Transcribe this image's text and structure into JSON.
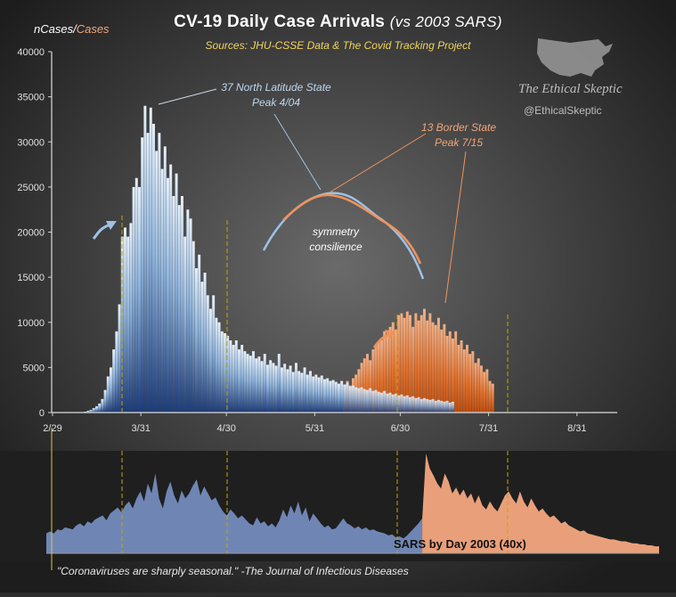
{
  "header": {
    "title": "CV-19  Daily Case Arrivals",
    "title_paren": "(vs 2003 SARS)",
    "sources": "Sources: JHU-CSSE Data & The Covid Tracking Project",
    "units_left": "nCases",
    "units_sep": "/",
    "units_right": "Cases"
  },
  "annotations": {
    "north": "37 North Latitude State Peak 4/04",
    "border": "13 Border State Peak 7/15",
    "symmetry": "symmetry consilience"
  },
  "branding": {
    "name": "The Ethical Skeptic",
    "handle": "@EthicalSkeptic",
    "icon": "usa-map-icon"
  },
  "inset": {
    "label": "SARS by Day 2003 (40x)"
  },
  "footer": {
    "quote": "\"Coronaviruses are sharply seasonal.\" -The Journal of Infectious Diseases"
  },
  "colors": {
    "background": "#2e2e2e",
    "north_series": "#9ec2e6",
    "north_series_dark": "#1f3f7a",
    "border_series": "#f0935a",
    "border_series_dark": "#c9520f",
    "sars_blue": "#6f86b5",
    "sars_orange": "#e9a07a",
    "title": "#ffffff",
    "sources": "#f2d35c"
  },
  "chart_data": [
    {
      "type": "bar",
      "title": "CV-19  Daily Case Arrivals (vs 2003 SARS)",
      "x_tick_labels": [
        "2/29",
        "3/31",
        "4/30",
        "5/31",
        "6/30",
        "7/31",
        "8/31"
      ],
      "y_tick_labels": [
        "0",
        "5000",
        "10000",
        "15000",
        "20000",
        "25000",
        "30000",
        "35000",
        "40000"
      ],
      "ylim": [
        0,
        40000
      ],
      "grid": false,
      "series": [
        {
          "name": "37 North Latitude",
          "peak_label": "4/04",
          "values": [
            0,
            0,
            0,
            0,
            0,
            0,
            0,
            0,
            0,
            0,
            50,
            100,
            200,
            300,
            500,
            700,
            1000,
            1500,
            2500,
            4000,
            5000,
            7000,
            9000,
            12000,
            19500,
            20500,
            19500,
            21000,
            25000,
            26000,
            25000,
            30500,
            34000,
            31000,
            33800,
            32000,
            29000,
            31000,
            27000,
            29500,
            26000,
            27500,
            24000,
            26500,
            23000,
            24000,
            19500,
            22500,
            21500,
            19000,
            16000,
            17500,
            14500,
            15500,
            13000,
            11500,
            13000,
            10500,
            10000,
            9000,
            8800,
            8500,
            8000,
            7500,
            8000,
            7000,
            7500,
            6800,
            6500,
            6300,
            6800,
            6000,
            6200,
            5700,
            6500,
            5300,
            5800,
            5500,
            5200,
            6500,
            5000,
            5400,
            4800,
            5200,
            4500,
            5500,
            4600,
            4400,
            5000,
            4200,
            4600,
            4000,
            4200,
            3900,
            4100,
            3700,
            3800,
            3500,
            3600,
            3400,
            3200,
            3500,
            3100,
            3300,
            2900,
            3000,
            2800,
            2700,
            2800,
            2600,
            2500,
            2700,
            2400,
            2500,
            2300,
            2200,
            2400,
            2100,
            2200,
            2000,
            2100,
            1900,
            2000,
            1800,
            1900,
            1700,
            1800,
            1600,
            1700,
            1500,
            1600,
            1500,
            1400,
            1500,
            1300,
            1400,
            1300,
            1200,
            1300,
            1100,
            1200
          ]
        },
        {
          "name": "13 Border State",
          "peak_label": "7/15",
          "values": [
            0,
            0,
            0,
            0,
            0,
            0,
            0,
            0,
            0,
            0,
            0,
            0,
            0,
            0,
            0,
            0,
            0,
            0,
            0,
            0,
            0,
            0,
            0,
            0,
            0,
            0,
            0,
            0,
            0,
            0,
            0,
            0,
            0,
            0,
            0,
            0,
            0,
            0,
            0,
            0,
            0,
            0,
            0,
            0,
            0,
            0,
            0,
            0,
            0,
            0,
            0,
            0,
            0,
            0,
            0,
            0,
            0,
            0,
            0,
            0,
            0,
            0,
            0,
            0,
            0,
            0,
            0,
            0,
            0,
            0,
            0,
            0,
            0,
            0,
            0,
            0,
            0,
            0,
            0,
            0,
            0,
            0,
            0,
            0,
            0,
            0,
            0,
            0,
            0,
            0,
            0,
            0,
            0,
            0,
            0,
            0,
            0,
            0,
            0,
            0,
            0,
            0,
            3000,
            3500,
            3000,
            3800,
            4200,
            4800,
            5500,
            6000,
            6500,
            5800,
            7000,
            7500,
            7800,
            8000,
            9000,
            8500,
            9500,
            10000,
            9200,
            10800,
            11000,
            10500,
            11200,
            10800,
            9500,
            11000,
            10200,
            10800,
            11500,
            10200,
            11000,
            10000,
            9700,
            10500,
            9200,
            9800,
            8500,
            9000,
            8200,
            9000,
            7500,
            8000,
            7000,
            7500,
            6500,
            6800,
            5500,
            6000,
            5200,
            4500,
            4800,
            3500,
            3200
          ]
        }
      ]
    },
    {
      "type": "area",
      "title": "SARS by Day 2003 (40x)",
      "series": [
        {
          "name": "SARS",
          "values": [
            0.2,
            0.22,
            0.2,
            0.24,
            0.23,
            0.26,
            0.25,
            0.24,
            0.28,
            0.3,
            0.27,
            0.32,
            0.3,
            0.34,
            0.36,
            0.38,
            0.33,
            0.4,
            0.43,
            0.46,
            0.41,
            0.48,
            0.52,
            0.45,
            0.55,
            0.62,
            0.52,
            0.7,
            0.6,
            0.8,
            0.55,
            0.45,
            0.62,
            0.72,
            0.58,
            0.5,
            0.63,
            0.55,
            0.6,
            0.68,
            0.74,
            0.58,
            0.67,
            0.6,
            0.53,
            0.56,
            0.48,
            0.42,
            0.38,
            0.44,
            0.4,
            0.35,
            0.38,
            0.34,
            0.3,
            0.28,
            0.36,
            0.3,
            0.32,
            0.27,
            0.3,
            0.26,
            0.33,
            0.44,
            0.36,
            0.48,
            0.4,
            0.52,
            0.38,
            0.46,
            0.32,
            0.4,
            0.35,
            0.3,
            0.26,
            0.28,
            0.24,
            0.25,
            0.3,
            0.35,
            0.3,
            0.28,
            0.25,
            0.27,
            0.24,
            0.26,
            0.23,
            0.24,
            0.22,
            0.21,
            0.2,
            0.18,
            0.19,
            0.16,
            0.17,
            0.15,
            0.18,
            0.22,
            0.26,
            0.3,
            0.35,
            1.0,
            0.85,
            0.78,
            0.7,
            0.65,
            0.8,
            0.72,
            0.6,
            0.66,
            0.58,
            0.64,
            0.55,
            0.6,
            0.5,
            0.58,
            0.48,
            0.44,
            0.52,
            0.46,
            0.42,
            0.5,
            0.58,
            0.62,
            0.55,
            0.5,
            0.62,
            0.52,
            0.46,
            0.55,
            0.48,
            0.42,
            0.45,
            0.4,
            0.36,
            0.38,
            0.34,
            0.3,
            0.32,
            0.28,
            0.26,
            0.24,
            0.22,
            0.23,
            0.2,
            0.19,
            0.18,
            0.17,
            0.16,
            0.15,
            0.14,
            0.14,
            0.13,
            0.12,
            0.12,
            0.11,
            0.1,
            0.1,
            0.09,
            0.09,
            0.08,
            0.08,
            0.07,
            0.07
          ]
        }
      ]
    }
  ]
}
